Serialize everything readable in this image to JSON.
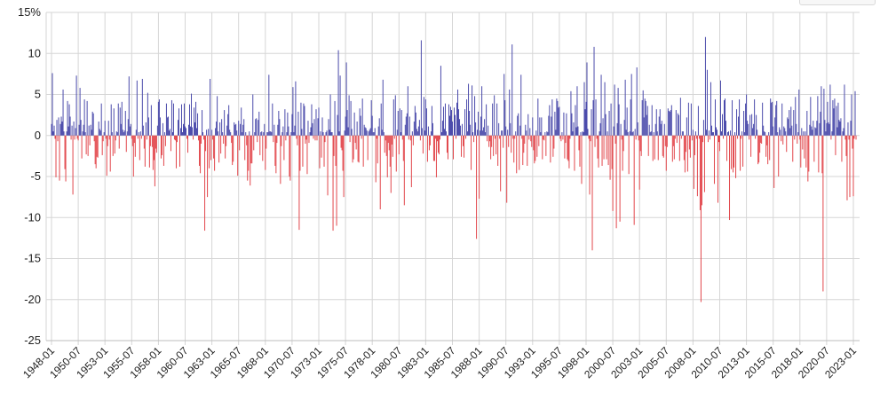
{
  "chart_data": {
    "type": "bar",
    "title": "",
    "xlabel": "",
    "ylabel": "",
    "ylim": [
      -25,
      15
    ],
    "y_ticks": [
      15,
      10,
      5,
      0,
      -5,
      -10,
      -15,
      -20,
      -25
    ],
    "y_tick_labels": [
      "15%",
      "10",
      "5",
      "0",
      "-5",
      "-10",
      "-15",
      "-20",
      "-25"
    ],
    "x_range": [
      "1948-01",
      "2023-04"
    ],
    "x_tick_labels": [
      "1948-01",
      "1950-07",
      "1953-01",
      "1955-07",
      "1958-01",
      "1960-07",
      "1963-01",
      "1965-07",
      "1968-01",
      "1970-07",
      "1973-01",
      "1975-07",
      "1978-01",
      "1980-07",
      "1983-01",
      "1985-07",
      "1988-01",
      "1990-07",
      "1993-01",
      "1995-07",
      "1998-01",
      "2000-07",
      "2003-01",
      "2005-07",
      "2008-01",
      "2010-07",
      "2013-01",
      "2015-07",
      "2018-01",
      "2020-07",
      "2023-01"
    ],
    "grid": true,
    "positive_color": "#4b4bab",
    "negative_color": "#e2474c",
    "series_points": [
      [
        "1948-02",
        7.6
      ],
      [
        "1948-06",
        -5.1
      ],
      [
        "1948-10",
        -5.5
      ],
      [
        "1949-02",
        5.6
      ],
      [
        "1949-05",
        -5.6
      ],
      [
        "1949-09",
        3.8
      ],
      [
        "1950-01",
        -7.2
      ],
      [
        "1950-05",
        7.3
      ],
      [
        "1950-09",
        5.8
      ],
      [
        "1951-02",
        4.4
      ],
      [
        "1951-06",
        -2.5
      ],
      [
        "1951-11",
        2.9
      ],
      [
        "1952-04",
        -2.6
      ],
      [
        "1952-09",
        3.9
      ],
      [
        "1953-03",
        -4.9
      ],
      [
        "1953-07",
        -4.4
      ],
      [
        "1953-11",
        3.3
      ],
      [
        "1954-04",
        3.9
      ],
      [
        "1954-08",
        4.1
      ],
      [
        "1955-01",
        -2.0
      ],
      [
        "1955-04",
        7.2
      ],
      [
        "1955-09",
        -5.0
      ],
      [
        "1956-01",
        6.7
      ],
      [
        "1956-04",
        -3.0
      ],
      [
        "1956-07",
        6.9
      ],
      [
        "1956-10",
        -3.8
      ],
      [
        "1957-01",
        5.2
      ],
      [
        "1957-07",
        -4.2
      ],
      [
        "1957-09",
        -6.2
      ],
      [
        "1958-01",
        4.1
      ],
      [
        "1958-05",
        -2.4
      ],
      [
        "1958-10",
        3.9
      ],
      [
        "1959-03",
        -1.9
      ],
      [
        "1959-06",
        3.9
      ],
      [
        "1959-09",
        -4.0
      ],
      [
        "1960-01",
        -3.8
      ],
      [
        "1960-06",
        3.9
      ],
      [
        "1960-10",
        -2.1
      ],
      [
        "1961-02",
        5.1
      ],
      [
        "1961-07",
        4.1
      ],
      [
        "1961-12",
        -4.6
      ],
      [
        "1962-05",
        -11.6
      ],
      [
        "1962-08",
        -7.5
      ],
      [
        "1962-11",
        6.9
      ],
      [
        "1963-03",
        -2.8
      ],
      [
        "1963-07",
        4.8
      ],
      [
        "1963-11",
        -2.2
      ],
      [
        "1964-03",
        3.1
      ],
      [
        "1964-07",
        2.6
      ],
      [
        "1964-12",
        -3.6
      ],
      [
        "1965-06",
        -4.9
      ],
      [
        "1965-10",
        3.4
      ],
      [
        "1966-02",
        -3.0
      ],
      [
        "1966-05",
        -5.5
      ],
      [
        "1966-08",
        -6.1
      ],
      [
        "1966-11",
        5.0
      ],
      [
        "1967-06",
        2.9
      ],
      [
        "1967-10",
        -3.1
      ],
      [
        "1968-01",
        -4.2
      ],
      [
        "1968-05",
        7.4
      ],
      [
        "1968-09",
        3.9
      ],
      [
        "1969-01",
        -4.6
      ],
      [
        "1969-06",
        -5.9
      ],
      [
        "1969-11",
        3.2
      ],
      [
        "1970-04",
        -5.0
      ],
      [
        "1970-05",
        -5.5
      ],
      [
        "1970-08",
        5.9
      ],
      [
        "1970-11",
        6.6
      ],
      [
        "1971-03",
        -11.5
      ],
      [
        "1971-08",
        3.9
      ],
      [
        "1971-12",
        -4.7
      ],
      [
        "1972-05",
        3.8
      ],
      [
        "1972-10",
        3.2
      ],
      [
        "1973-02",
        -4.0
      ],
      [
        "1973-07",
        -3.8
      ],
      [
        "1973-11",
        -7.3
      ],
      [
        "1974-02",
        5.0
      ],
      [
        "1974-05",
        -11.6
      ],
      [
        "1974-09",
        -11.0
      ],
      [
        "1974-11",
        10.4
      ],
      [
        "1975-01",
        7.3
      ],
      [
        "1975-05",
        -7.5
      ],
      [
        "1975-08",
        8.9
      ],
      [
        "1975-11",
        4.9
      ],
      [
        "1976-04",
        -2.9
      ],
      [
        "1976-11",
        3.3
      ],
      [
        "1977-03",
        -3.8
      ],
      [
        "1977-08",
        -3.0
      ],
      [
        "1977-12",
        4.3
      ],
      [
        "1978-05",
        -5.7
      ],
      [
        "1978-10",
        -9.0
      ],
      [
        "1979-01",
        6.8
      ],
      [
        "1979-06",
        -5.1
      ],
      [
        "1979-10",
        -7.0
      ],
      [
        "1980-03",
        4.9
      ],
      [
        "1980-08",
        3.3
      ],
      [
        "1981-01",
        -8.5
      ],
      [
        "1981-05",
        6.0
      ],
      [
        "1981-09",
        -6.3
      ],
      [
        "1982-01",
        3.6
      ],
      [
        "1982-08",
        11.6
      ],
      [
        "1982-11",
        4.7
      ],
      [
        "1983-03",
        -3.2
      ],
      [
        "1983-08",
        3.6
      ],
      [
        "1984-01",
        -5.1
      ],
      [
        "1984-06",
        8.5
      ],
      [
        "1984-11",
        3.9
      ],
      [
        "1985-03",
        3.8
      ],
      [
        "1985-08",
        -2.9
      ],
      [
        "1986-01",
        5.6
      ],
      [
        "1986-05",
        -2.6
      ],
      [
        "1986-09",
        3.2
      ],
      [
        "1987-01",
        6.3
      ],
      [
        "1987-05",
        6.1
      ],
      [
        "1987-08",
        4.8
      ],
      [
        "1987-10",
        -12.6
      ],
      [
        "1988-01",
        -7.7
      ],
      [
        "1988-04",
        6.0
      ],
      [
        "1988-09",
        3.8
      ],
      [
        "1989-02",
        -2.9
      ],
      [
        "1989-06",
        4.9
      ],
      [
        "1989-10",
        -3.7
      ],
      [
        "1990-01",
        -6.8
      ],
      [
        "1990-05",
        7.5
      ],
      [
        "1990-08",
        -8.2
      ],
      [
        "1990-11",
        5.6
      ],
      [
        "1991-02",
        11.1
      ],
      [
        "1991-07",
        -4.6
      ],
      [
        "1991-12",
        7.4
      ],
      [
        "1992-03",
        -2.1
      ],
      [
        "1992-08",
        2.6
      ],
      [
        "1993-01",
        2.2
      ],
      [
        "1993-06",
        -2.6
      ],
      [
        "1993-11",
        2.2
      ],
      [
        "1994-04",
        -2.5
      ],
      [
        "1994-09",
        -3.3
      ],
      [
        "1995-02",
        2.9
      ],
      [
        "1995-07",
        3.5
      ],
      [
        "1995-12",
        2.8
      ],
      [
        "1996-04",
        -2.9
      ],
      [
        "1996-08",
        5.4
      ],
      [
        "1996-12",
        -4.3
      ],
      [
        "1997-03",
        6.0
      ],
      [
        "1997-08",
        -5.9
      ],
      [
        "1997-11",
        6.5
      ],
      [
        "1998-02",
        8.9
      ],
      [
        "1998-05",
        -7.2
      ],
      [
        "1998-08",
        -14.0
      ],
      [
        "1998-10",
        10.8
      ],
      [
        "1999-02",
        -2.8
      ],
      [
        "1999-06",
        7.4
      ],
      [
        "1999-10",
        6.5
      ],
      [
        "2000-02",
        -3.6
      ],
      [
        "2000-04",
        -5.4
      ],
      [
        "2000-07",
        -9.2
      ],
      [
        "2000-09",
        6.2
      ],
      [
        "2000-11",
        -11.3
      ],
      [
        "2001-01",
        5.8
      ],
      [
        "2001-03",
        -10.5
      ],
      [
        "2001-06",
        -4.3
      ],
      [
        "2001-09",
        6.8
      ],
      [
        "2002-01",
        -4.7
      ],
      [
        "2002-04",
        7.5
      ],
      [
        "2002-07",
        -10.9
      ],
      [
        "2002-10",
        8.3
      ],
      [
        "2003-01",
        -6.6
      ],
      [
        "2003-05",
        5.5
      ],
      [
        "2003-10",
        3.6
      ],
      [
        "2004-04",
        -3.1
      ],
      [
        "2004-08",
        3.2
      ],
      [
        "2004-12",
        3.2
      ],
      [
        "2005-04",
        -2.7
      ],
      [
        "2005-09",
        3.3
      ],
      [
        "2006-02",
        -3.2
      ],
      [
        "2006-06",
        3.1
      ],
      [
        "2006-11",
        4.6
      ],
      [
        "2007-03",
        -3.0
      ],
      [
        "2007-07",
        -4.4
      ],
      [
        "2007-11",
        3.9
      ],
      [
        "2008-02",
        -6.5
      ],
      [
        "2008-06",
        -7.4
      ],
      [
        "2008-09",
        -9.1
      ],
      [
        "2008-10",
        -20.3
      ],
      [
        "2008-11",
        -8.5
      ],
      [
        "2009-02",
        -6.9
      ],
      [
        "2009-03",
        12.0
      ],
      [
        "2009-05",
        8.0
      ],
      [
        "2009-09",
        6.5
      ],
      [
        "2010-01",
        -5.9
      ],
      [
        "2010-05",
        -8.2
      ],
      [
        "2010-08",
        6.7
      ],
      [
        "2011-01",
        4.5
      ],
      [
        "2011-03",
        -3.1
      ],
      [
        "2011-06",
        -10.3
      ],
      [
        "2011-09",
        4.3
      ],
      [
        "2012-01",
        -5.2
      ],
      [
        "2012-05",
        4.4
      ],
      [
        "2012-09",
        -3.8
      ],
      [
        "2013-01",
        5.0
      ],
      [
        "2013-06",
        -2.6
      ],
      [
        "2013-10",
        4.4
      ],
      [
        "2014-02",
        -3.5
      ],
      [
        "2014-07",
        4.0
      ],
      [
        "2014-11",
        -2.6
      ],
      [
        "2015-03",
        -3.0
      ],
      [
        "2015-08",
        -6.4
      ],
      [
        "2015-11",
        4.2
      ],
      [
        "2016-01",
        -5.0
      ],
      [
        "2016-05",
        3.9
      ],
      [
        "2016-10",
        -2.0
      ],
      [
        "2017-03",
        3.5
      ],
      [
        "2017-08",
        4.7
      ],
      [
        "2017-12",
        5.6
      ],
      [
        "2018-02",
        -3.9
      ],
      [
        "2018-06",
        -2.8
      ],
      [
        "2018-10",
        -5.6
      ],
      [
        "2019-01",
        4.7
      ],
      [
        "2019-05",
        -3.2
      ],
      [
        "2019-09",
        4.8
      ],
      [
        "2020-01",
        6.0
      ],
      [
        "2020-02",
        -4.6
      ],
      [
        "2020-03",
        -19.0
      ],
      [
        "2020-04",
        5.7
      ],
      [
        "2020-08",
        4.1
      ],
      [
        "2020-11",
        6.2
      ],
      [
        "2021-03",
        3.3
      ],
      [
        "2021-08",
        4.0
      ],
      [
        "2021-12",
        -3.2
      ],
      [
        "2022-03",
        6.2
      ],
      [
        "2022-06",
        -7.9
      ],
      [
        "2022-09",
        -7.5
      ],
      [
        "2022-11",
        5.0
      ],
      [
        "2023-01",
        -7.4
      ],
      [
        "2023-03",
        5.4
      ]
    ]
  }
}
